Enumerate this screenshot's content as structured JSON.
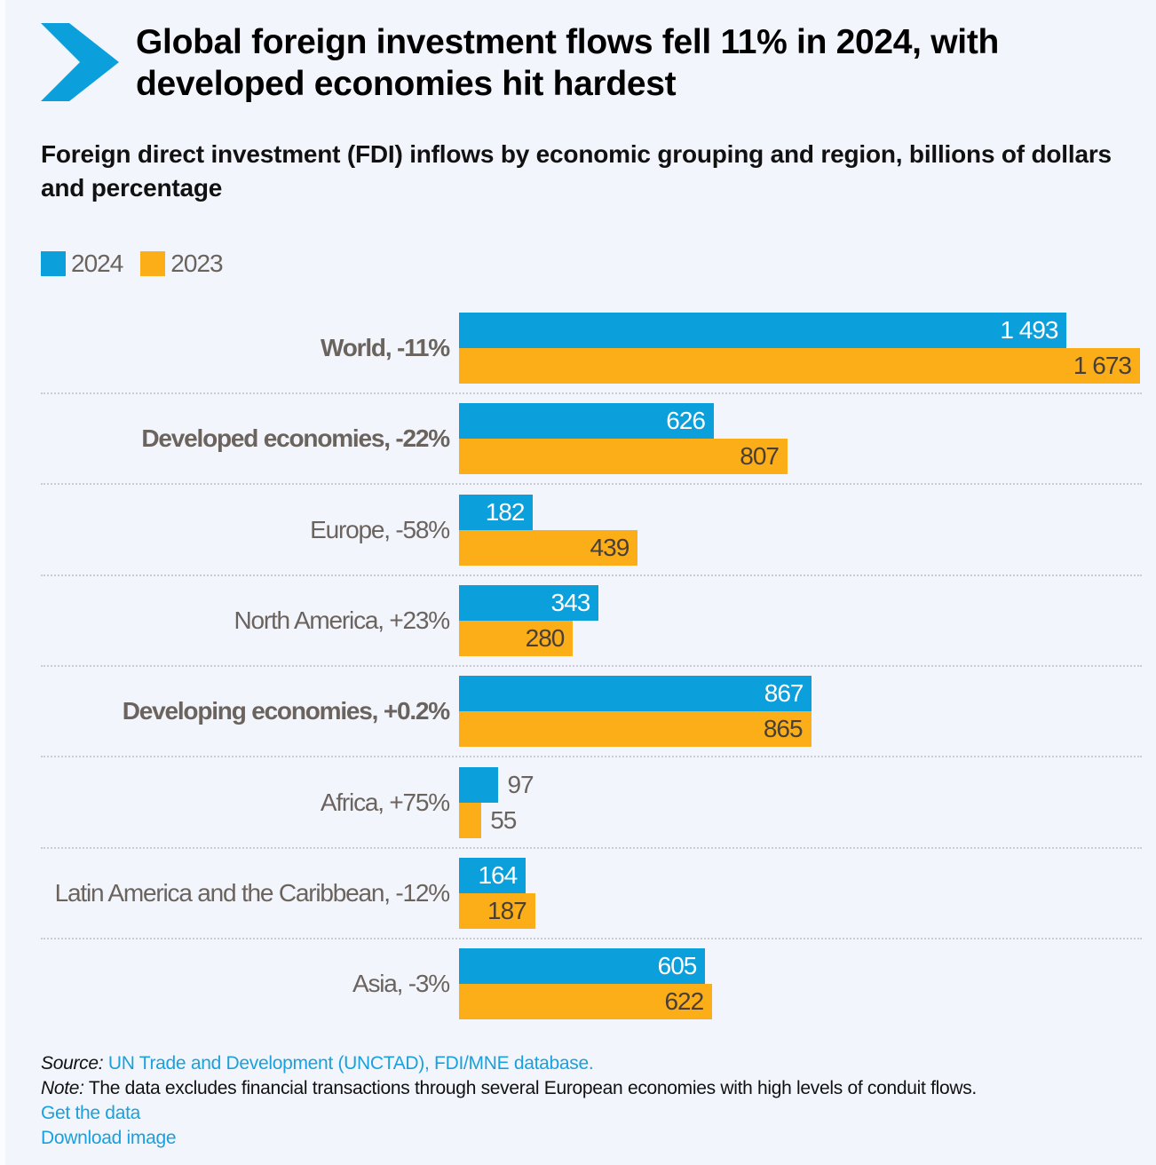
{
  "header": {
    "title": "Global foreign investment flows fell 11% in 2024, with developed economies hit hardest",
    "subtitle": "Foreign direct investment (FDI) inflows by economic grouping and region, billions of dollars and percentage",
    "logo_icon": "chevron-right-icon"
  },
  "colors": {
    "2024": "#0b9fdb",
    "2023": "#fbae17"
  },
  "chart_data": {
    "type": "bar",
    "orientation": "horizontal",
    "legend": [
      "2024",
      "2023"
    ],
    "legend_position": "top-left",
    "grid": false,
    "xlim": [
      0,
      1673
    ],
    "categories": [
      {
        "label": "World, -11%",
        "bold": true
      },
      {
        "label": "Developed economies, -22%",
        "bold": true
      },
      {
        "label": "Europe, -58%",
        "bold": false
      },
      {
        "label": "North America, +23%",
        "bold": false
      },
      {
        "label": "Developing economies, +0.2%",
        "bold": true
      },
      {
        "label": "Africa, +75%",
        "bold": false
      },
      {
        "label": "Latin America and the Caribbean, -12%",
        "bold": false
      },
      {
        "label": "Asia, -3%",
        "bold": false
      }
    ],
    "series": [
      {
        "name": "2024",
        "values": [
          1493,
          626,
          182,
          343,
          867,
          97,
          164,
          605
        ],
        "labels": [
          "1 493",
          "626",
          "182",
          "343",
          "867",
          "97",
          "164",
          "605"
        ]
      },
      {
        "name": "2023",
        "values": [
          1673,
          807,
          439,
          280,
          865,
          55,
          187,
          622
        ],
        "labels": [
          "1 673",
          "807",
          "439",
          "280",
          "865",
          "55",
          "187",
          "622"
        ]
      }
    ]
  },
  "footer": {
    "source_label": "Source:",
    "source_text": "UN Trade and Development (UNCTAD), FDI/MNE database.",
    "note_label": "Note:",
    "note_text": "The data excludes financial transactions through several European economies with high levels of conduit flows.",
    "get_data": "Get the data",
    "download_image": "Download image"
  }
}
